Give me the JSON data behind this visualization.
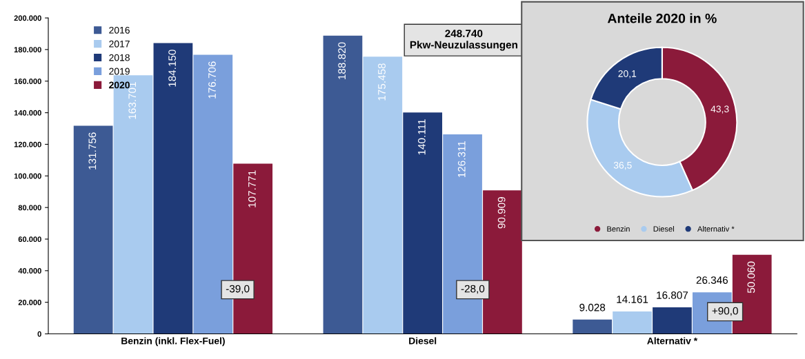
{
  "chart_data": [
    {
      "type": "bar",
      "categories": [
        "Benzin (inkl. Flex-Fuel)",
        "Diesel",
        "Alternativ *"
      ],
      "series": [
        {
          "name": "2016",
          "color": "#3d5a94",
          "values": [
            131756,
            188820,
            9028
          ],
          "value_labels": [
            "131.756",
            "188.820",
            "9.028"
          ]
        },
        {
          "name": "2017",
          "color": "#a9cbef",
          "values": [
            163701,
            175458,
            14161
          ],
          "value_labels": [
            "163.701",
            "175.458",
            "14.161"
          ]
        },
        {
          "name": "2018",
          "color": "#1f3a78",
          "values": [
            184150,
            140111,
            16807
          ],
          "value_labels": [
            "184.150",
            "140.111",
            "16.807"
          ]
        },
        {
          "name": "2019",
          "color": "#7a9fdc",
          "values": [
            176706,
            126311,
            26346
          ],
          "value_labels": [
            "176.706",
            "126.311",
            "26.346"
          ]
        },
        {
          "name": "2020",
          "color": "#8b1a3a",
          "values": [
            107771,
            90909,
            50060
          ],
          "value_labels": [
            "107.771",
            "90.909",
            "50.060"
          ]
        }
      ],
      "ylim": [
        0,
        200000
      ],
      "yticks": [
        {
          "value": 0,
          "label": "0"
        },
        {
          "value": 20000,
          "label": "20.000"
        },
        {
          "value": 40000,
          "label": "40.000"
        },
        {
          "value": 60000,
          "label": "60.000"
        },
        {
          "value": 80000,
          "label": "80.000"
        },
        {
          "value": 100000,
          "label": "100.000"
        },
        {
          "value": 120000,
          "label": "120.000"
        },
        {
          "value": 140000,
          "label": "140.000"
        },
        {
          "value": 160000,
          "label": "160.000"
        },
        {
          "value": 180000,
          "label": "180.000"
        },
        {
          "value": 200000,
          "label": "200.000"
        }
      ],
      "annotations": [
        "-39,0",
        "-28,0",
        "+90,0",
        "248.740\nPkw-Neuzulassungen"
      ],
      "legend": "top left",
      "grid": false
    },
    {
      "type": "donut",
      "title": "Anteile 2020 in %",
      "categories": [
        "Benzin",
        "Diesel",
        "Alternativ *"
      ],
      "values": [
        43.3,
        36.5,
        20.1
      ],
      "value_labels": [
        "43,3",
        "36,5",
        "20,1"
      ],
      "colors": [
        "#8b1a3a",
        "#a9cbef",
        "#1f3a78"
      ],
      "legend": "bottom"
    }
  ]
}
